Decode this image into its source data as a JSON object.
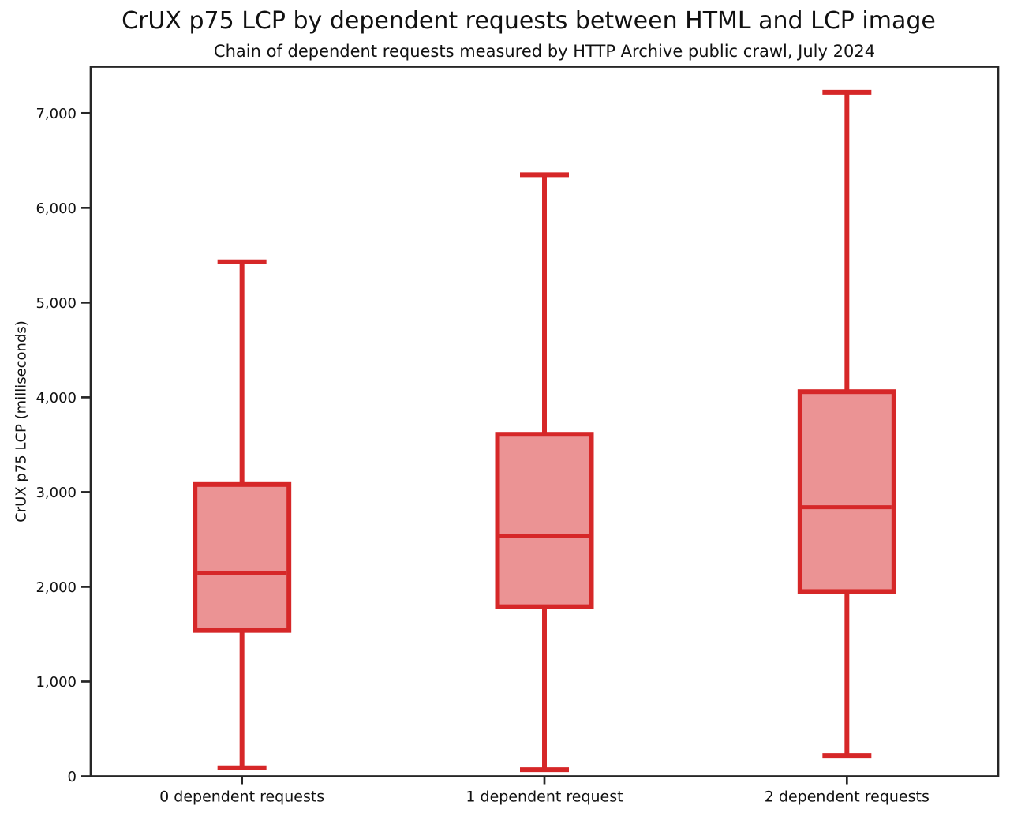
{
  "chart_data": {
    "type": "boxplot",
    "title": "CrUX p75 LCP by dependent requests between HTML and LCP image",
    "subtitle": "Chain of dependent requests measured by HTTP Archive public crawl, July 2024",
    "ylabel": "CrUX p75 LCP (milliseconds)",
    "ylim": [
      0,
      7490
    ],
    "yticks": [
      0,
      1000,
      2000,
      3000,
      4000,
      5000,
      6000,
      7000
    ],
    "ytick_labels": [
      "0",
      "1,000",
      "2,000",
      "3,000",
      "4,000",
      "5,000",
      "6,000",
      "7,000"
    ],
    "categories": [
      "0 dependent requests",
      "1 dependent request",
      "2 dependent requests"
    ],
    "series": [
      {
        "category": "0 dependent requests",
        "whisker_low": 90,
        "q1": 1540,
        "median": 2150,
        "q3": 3080,
        "whisker_high": 5430
      },
      {
        "category": "1 dependent request",
        "whisker_low": 70,
        "q1": 1790,
        "median": 2540,
        "q3": 3610,
        "whisker_high": 6350
      },
      {
        "category": "2 dependent requests",
        "whisker_low": 220,
        "q1": 1950,
        "median": 2840,
        "q3": 4060,
        "whisker_high": 7220
      }
    ],
    "grid": false,
    "legend_position": "none",
    "colors": {
      "box_fill": "#eb9394",
      "box_edge": "#d62728",
      "median": "#d62728",
      "whisker": "#d62728",
      "axis": "#262626",
      "text": "#111111"
    }
  }
}
